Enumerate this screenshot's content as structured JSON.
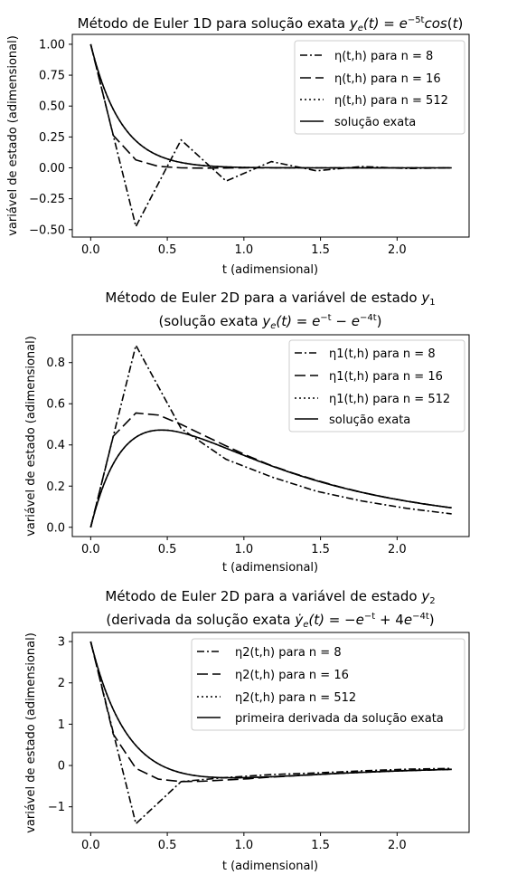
{
  "chart_data": [
    {
      "type": "line",
      "title": "Método de Euler 1D para solução exata",
      "title_math": "y_e(t) = e^{-5t} cos(t)",
      "xlabel": "t (adimensional)",
      "ylabel": "variável de estado (adimensional)",
      "xlim": [
        -0.12,
        2.47
      ],
      "ylim": [
        -0.56,
        1.08
      ],
      "xticks": [
        0.0,
        0.5,
        1.0,
        1.5,
        2.0
      ],
      "xtick_labels": [
        "0.0",
        "0.5",
        "1.0",
        "1.5",
        "2.0"
      ],
      "yticks": [
        -0.5,
        -0.25,
        0.0,
        0.25,
        0.5,
        0.75,
        1.0
      ],
      "ytick_labels": [
        "−0.50",
        "−0.25",
        "0.00",
        "0.25",
        "0.50",
        "0.75",
        "1.00"
      ],
      "legend_position": "top-right",
      "series": [
        {
          "name": "η(t,h) para n = 8",
          "style": "dashdot",
          "x": [
            0,
            0.295,
            0.59,
            0.884,
            1.179,
            1.474,
            1.768,
            2.063,
            2.356
          ],
          "y": [
            1.0,
            -0.475,
            0.226,
            -0.107,
            0.051,
            -0.024,
            0.011,
            -0.005,
            0.0
          ]
        },
        {
          "name": "η(t,h) para n = 16",
          "style": "longdash",
          "x": [
            0,
            0.147,
            0.295,
            0.442,
            0.59,
            0.737,
            0.884,
            1.031,
            1.179,
            1.326,
            1.474,
            1.621,
            1.768,
            1.915,
            2.063,
            2.21,
            2.356
          ],
          "y": [
            1.0,
            0.263,
            0.064,
            0.012,
            0.0,
            -0.002,
            -0.001,
            0.0,
            0.0,
            0.0,
            0.0,
            0.0,
            0.0,
            0.0,
            0.0,
            0.0,
            0.0
          ]
        },
        {
          "name": "η(t,h) para n = 512",
          "style": "dotted",
          "fn": "exp(-5t)cos(t)",
          "x_range": [
            0,
            2.356
          ],
          "samples": 160
        },
        {
          "name": "solução exata",
          "style": "solid",
          "fn": "exp(-5t)cos(t)",
          "x_range": [
            0,
            2.356
          ],
          "samples": 160
        }
      ]
    },
    {
      "type": "line",
      "title_line1": "Método de Euler 2D para a variável de estado",
      "title_line1_math": "y_1",
      "title_line2": "(solução exata",
      "title_line2_math": "y_e(t) = e^{-t} - e^{-4t}",
      "title_line2_close": ")",
      "xlabel": "t (adimensional)",
      "ylabel": "variável de estado (adimensional)",
      "xlim": [
        -0.12,
        2.47
      ],
      "ylim": [
        -0.045,
        0.935
      ],
      "xticks": [
        0.0,
        0.5,
        1.0,
        1.5,
        2.0
      ],
      "xtick_labels": [
        "0.0",
        "0.5",
        "1.0",
        "1.5",
        "2.0"
      ],
      "yticks": [
        0.0,
        0.2,
        0.4,
        0.6,
        0.8
      ],
      "ytick_labels": [
        "0.0",
        "0.2",
        "0.4",
        "0.6",
        "0.8"
      ],
      "legend_position": "top-right",
      "series": [
        {
          "name": "η1(t,h) para n = 8",
          "style": "dashdot",
          "x": [
            0,
            0.295,
            0.59,
            0.884,
            1.179,
            1.474,
            1.768,
            2.063,
            2.356
          ],
          "y": [
            0.0,
            0.884,
            0.48,
            0.33,
            0.245,
            0.175,
            0.128,
            0.092,
            0.065
          ]
        },
        {
          "name": "η1(t,h) para n = 16",
          "style": "longdash",
          "x": [
            0,
            0.147,
            0.295,
            0.442,
            0.59,
            0.737,
            0.884,
            1.031,
            1.179,
            1.326,
            1.474,
            1.621,
            1.768,
            1.915,
            2.063,
            2.21,
            2.356
          ],
          "y": [
            0.0,
            0.442,
            0.555,
            0.545,
            0.5,
            0.447,
            0.395,
            0.345,
            0.3,
            0.262,
            0.228,
            0.197,
            0.17,
            0.147,
            0.127,
            0.11,
            0.094
          ]
        },
        {
          "name": "η1(t,h) para n = 512",
          "style": "dotted",
          "fn": "exp(-t)-exp(-4t)",
          "x_range": [
            0,
            2.356
          ],
          "samples": 160
        },
        {
          "name": "solução exata",
          "style": "solid",
          "fn": "exp(-t)-exp(-4t)",
          "x_range": [
            0,
            2.356
          ],
          "samples": 160
        }
      ]
    },
    {
      "type": "line",
      "title_line1": "Método de Euler 2D para a variável de estado",
      "title_line1_math": "y_2",
      "title_line2": "(derivada da solução exata",
      "title_line2_math": "ẏ_e(t) = −e^{−t} + 4e^{−4t}",
      "title_line2_close": ")",
      "xlabel": "t (adimensional)",
      "ylabel": "variável de estado (adimensional)",
      "xlim": [
        -0.12,
        2.47
      ],
      "ylim": [
        -1.62,
        3.22
      ],
      "xticks": [
        0.0,
        0.5,
        1.0,
        1.5,
        2.0
      ],
      "xtick_labels": [
        "0.0",
        "0.5",
        "1.0",
        "1.5",
        "2.0"
      ],
      "yticks": [
        -1,
        0,
        1,
        2,
        3
      ],
      "ytick_labels": [
        "−1",
        "0",
        "1",
        "2",
        "3"
      ],
      "legend_position": "top-right",
      "series": [
        {
          "name": "η2(t,h) para n = 8",
          "style": "dashdot",
          "x": [
            0,
            0.295,
            0.59,
            0.884,
            1.179,
            1.474,
            1.768,
            2.063,
            2.356
          ],
          "y": [
            3.0,
            -1.41,
            -0.39,
            -0.29,
            -0.22,
            -0.18,
            -0.13,
            -0.09,
            -0.07
          ]
        },
        {
          "name": "η2(t,h) para n = 16",
          "style": "longdash",
          "x": [
            0,
            0.147,
            0.295,
            0.442,
            0.59,
            0.737,
            0.884,
            1.031,
            1.179,
            1.326,
            1.474,
            1.621,
            1.768,
            1.915,
            2.063,
            2.21,
            2.356
          ],
          "y": [
            3.0,
            0.76,
            -0.07,
            -0.33,
            -0.39,
            -0.38,
            -0.35,
            -0.32,
            -0.28,
            -0.25,
            -0.22,
            -0.19,
            -0.16,
            -0.14,
            -0.12,
            -0.11,
            -0.09
          ]
        },
        {
          "name": "η2(t,h) para n = 512",
          "style": "dotted",
          "fn": "-exp(-t)+4exp(-4t)",
          "x_range": [
            0,
            2.356
          ],
          "samples": 160
        },
        {
          "name": "primeira derivada da solução exata",
          "style": "solid",
          "fn": "-exp(-t)+4exp(-4t)",
          "x_range": [
            0,
            2.356
          ],
          "samples": 160
        }
      ]
    }
  ]
}
